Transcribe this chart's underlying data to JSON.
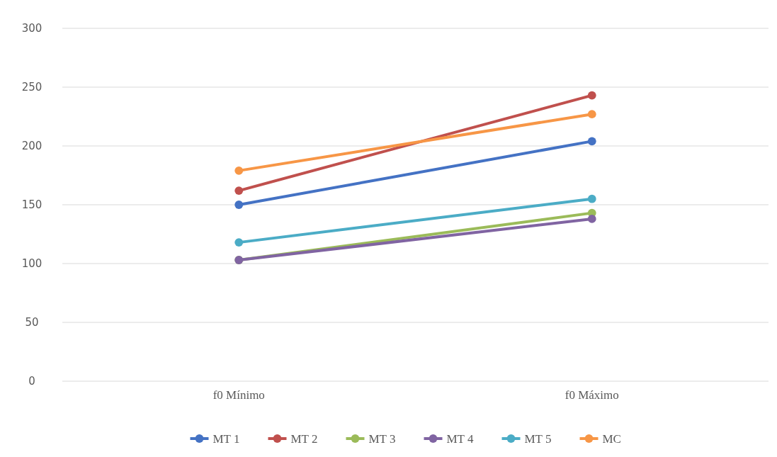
{
  "chart_data": {
    "type": "line",
    "categories": [
      "f0 Mínimo",
      "f0 Máximo"
    ],
    "series": [
      {
        "name": "MT 1",
        "color": "#4472c4",
        "values": [
          150,
          204
        ]
      },
      {
        "name": "MT 2",
        "color": "#c0504d",
        "values": [
          162,
          243
        ]
      },
      {
        "name": "MT 3",
        "color": "#9bbb59",
        "values": [
          103,
          143
        ]
      },
      {
        "name": "MT 4",
        "color": "#8064a2",
        "values": [
          103,
          138
        ]
      },
      {
        "name": "MT 5",
        "color": "#4bacc6",
        "values": [
          118,
          155
        ]
      },
      {
        "name": "MC",
        "color": "#f79646",
        "values": [
          179,
          227
        ]
      }
    ],
    "ylim": [
      0,
      300
    ],
    "yticks": [
      0,
      50,
      100,
      150,
      200,
      250,
      300
    ],
    "grid": "y",
    "legend": "bottom",
    "marker": "circle",
    "line_style": "solid"
  }
}
